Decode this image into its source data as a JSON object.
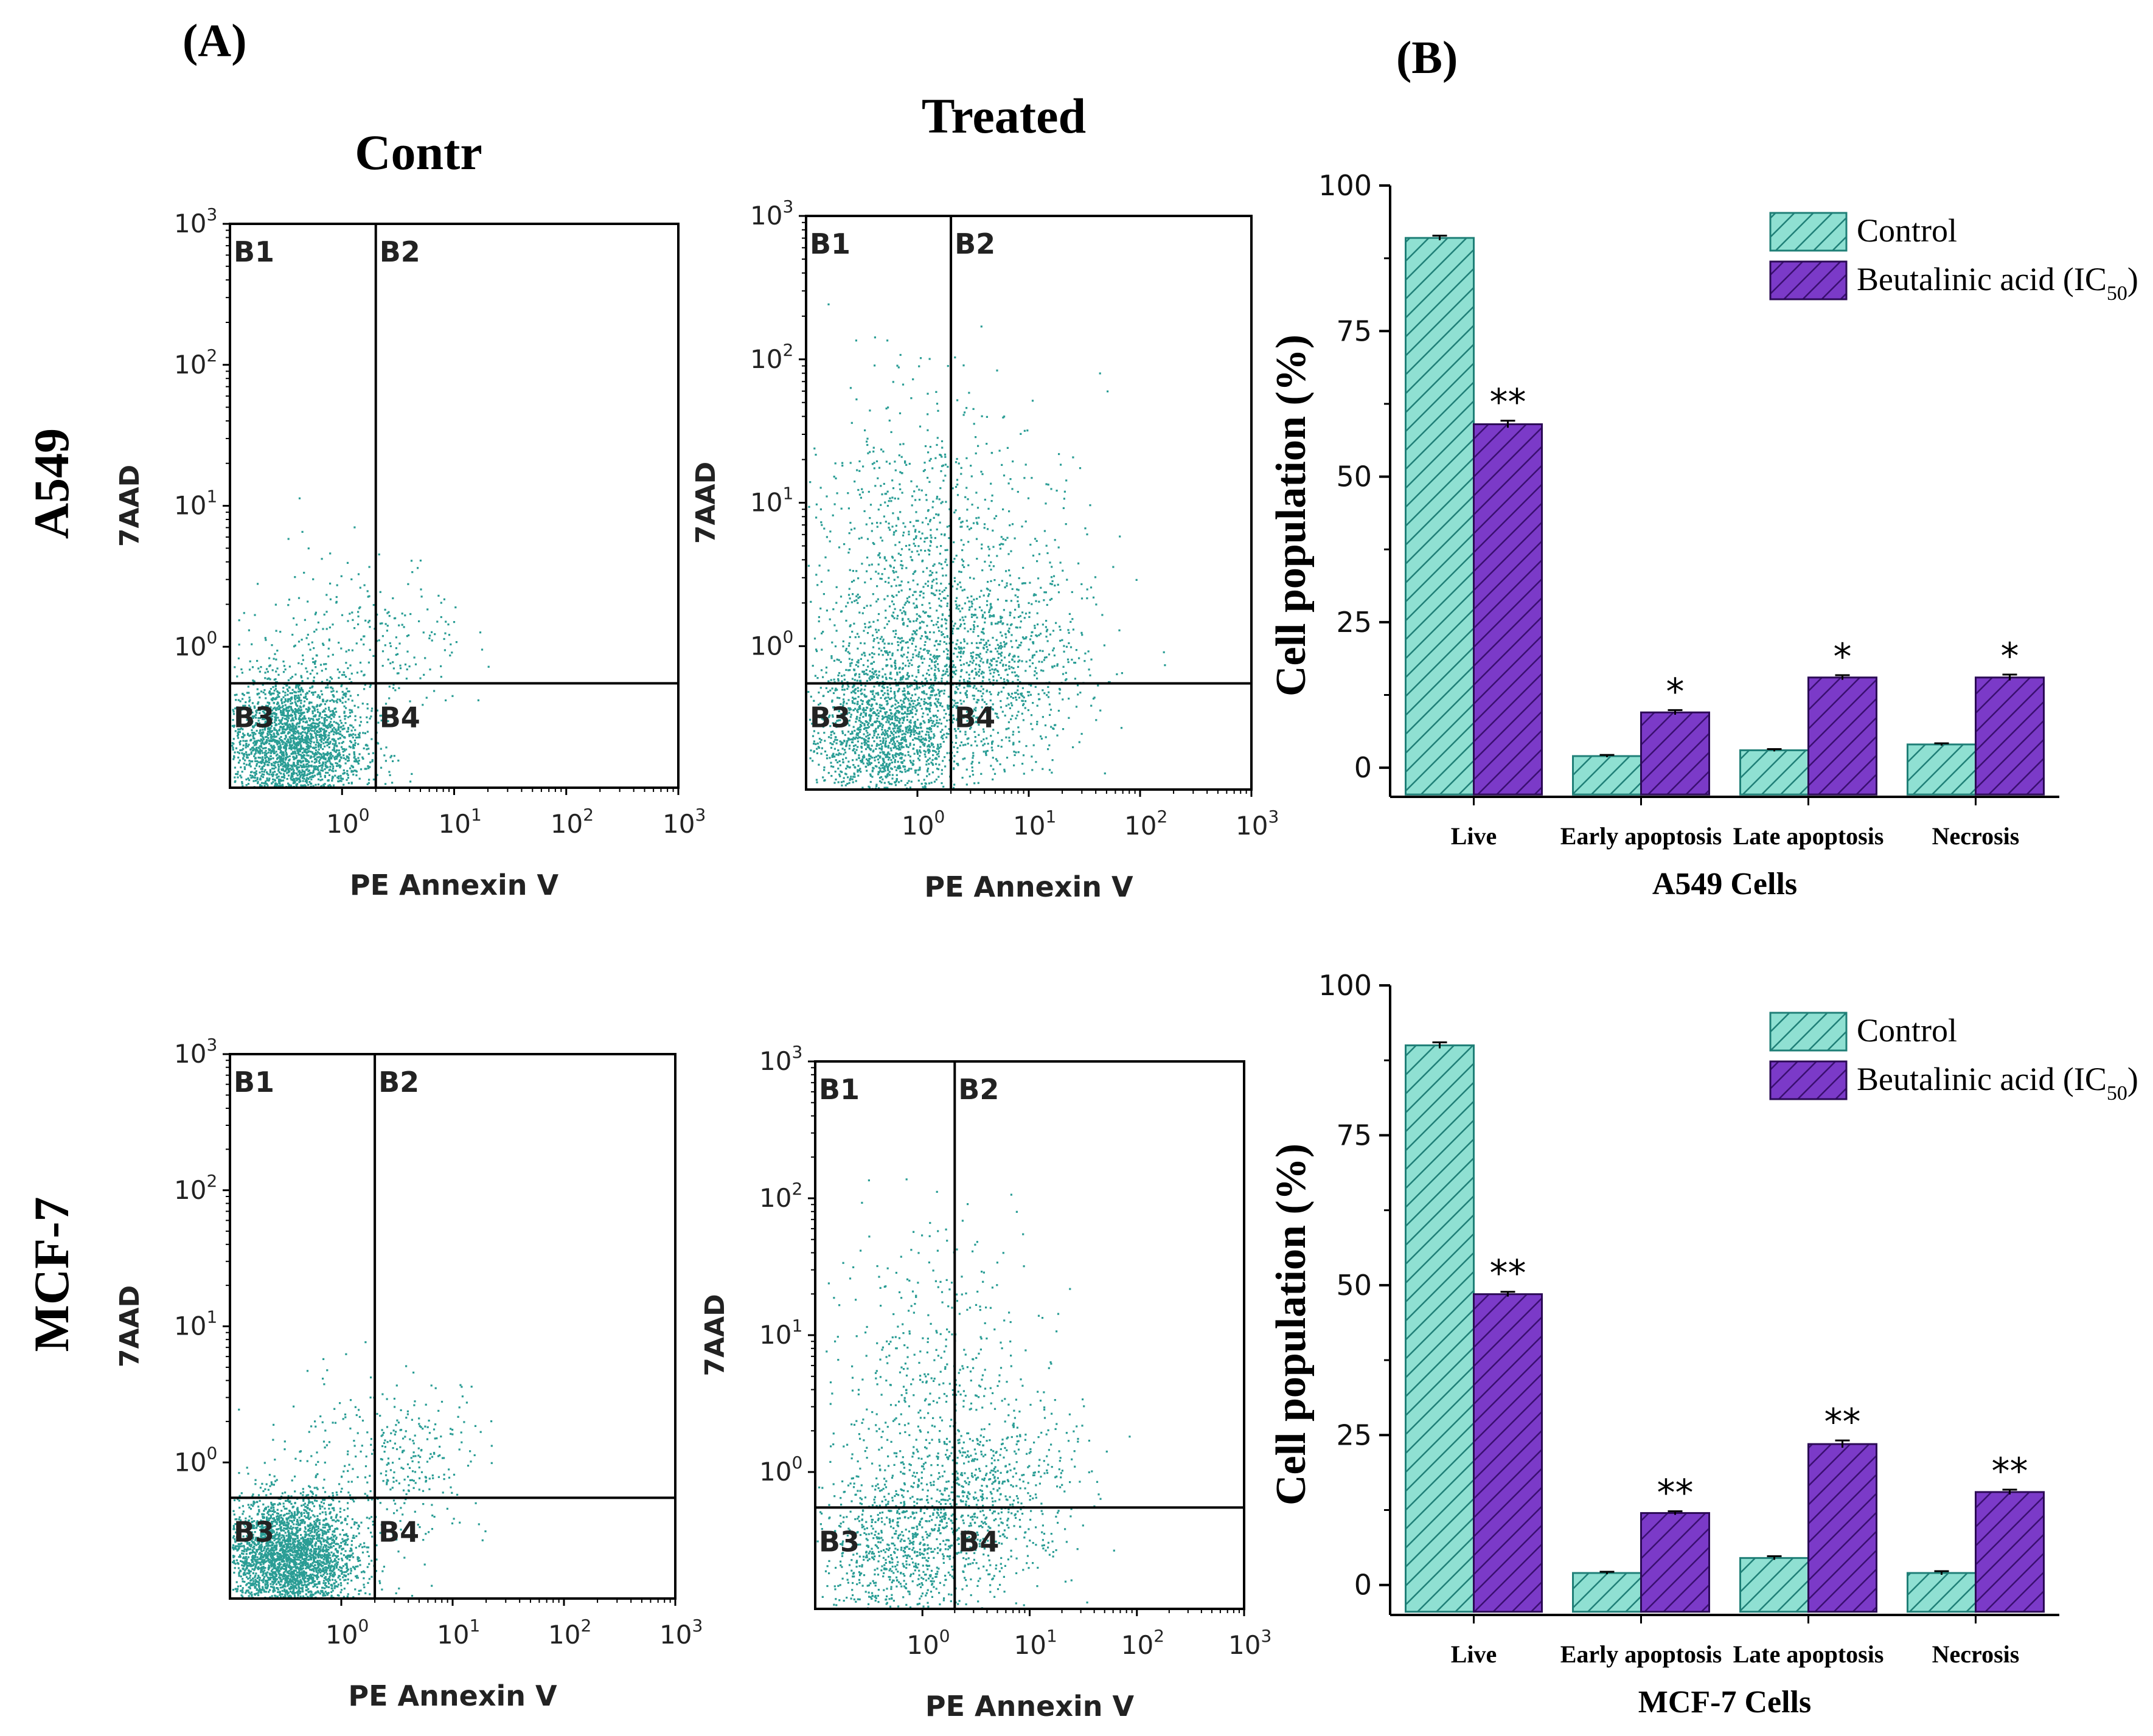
{
  "panel_a_label": "(A)",
  "panel_b_label": "(B)",
  "col_control": "Contr",
  "col_treated": "Treated",
  "row_a549": "A549",
  "row_mcf7": "MCF-7",
  "colors": {
    "teal": "#2a9d95",
    "teal_fill": "#8fe0d2",
    "purple": "#6a2bb0",
    "purple_fill": "#7b3ac8",
    "axis": "#000000"
  },
  "chart_data": [
    {
      "type": "scatter",
      "title": "A549 Control",
      "xlabel": "PE Annexin V",
      "ylabel": "7AAD",
      "xlim": [
        0.1,
        1000
      ],
      "ylim": [
        0.1,
        1000
      ],
      "scale": "log",
      "x_ticks": [
        "10^0",
        "10^1",
        "10^2",
        "10^3"
      ],
      "y_ticks": [
        "10^0",
        "10^1",
        "10^2",
        "10^3"
      ],
      "quadrant_gate": {
        "x": 2,
        "y": 0.55
      },
      "quadrants": [
        "B1",
        "B2",
        "B3",
        "B4"
      ],
      "clusters": [
        {
          "x": 0.35,
          "y": 0.2,
          "n": 2600,
          "spread_x": 0.32,
          "spread_y": 0.25
        },
        {
          "x": 2.5,
          "y": 1.1,
          "n": 170,
          "spread_x": 0.35,
          "spread_y": 0.3
        },
        {
          "x": 0.6,
          "y": 0.8,
          "n": 110,
          "spread_x": 0.4,
          "spread_y": 0.35
        }
      ]
    },
    {
      "type": "scatter",
      "title": "A549 Treated",
      "xlabel": "PE Annexin V",
      "ylabel": "7AAD",
      "xlim": [
        0.1,
        1000
      ],
      "ylim": [
        0.1,
        1000
      ],
      "scale": "log",
      "x_ticks": [
        "10^0",
        "10^1",
        "10^2",
        "10^3"
      ],
      "y_ticks": [
        "10^0",
        "10^1",
        "10^2",
        "10^3"
      ],
      "quadrant_gate": {
        "x": 2,
        "y": 0.55
      },
      "quadrants": [
        "B1",
        "B2",
        "B3",
        "B4"
      ],
      "clusters": [
        {
          "x": 0.5,
          "y": 0.25,
          "n": 1700,
          "spread_x": 0.35,
          "spread_y": 0.3
        },
        {
          "x": 4,
          "y": 0.7,
          "n": 900,
          "spread_x": 0.45,
          "spread_y": 0.35
        },
        {
          "x": 0.8,
          "y": 4,
          "n": 650,
          "spread_x": 0.45,
          "spread_y": 0.6
        },
        {
          "x": 3,
          "y": 3,
          "n": 300,
          "spread_x": 0.6,
          "spread_y": 0.6
        }
      ]
    },
    {
      "type": "scatter",
      "title": "MCF-7 Control",
      "xlabel": "PE Annexin V",
      "ylabel": "7AAD",
      "xlim": [
        0.1,
        1000
      ],
      "ylim": [
        0.1,
        1000
      ],
      "scale": "log",
      "x_ticks": [
        "10^0",
        "10^1",
        "10^2",
        "10^3"
      ],
      "y_ticks": [
        "10^0",
        "10^1",
        "10^2",
        "10^3"
      ],
      "quadrant_gate": {
        "x": 2,
        "y": 0.55
      },
      "quadrants": [
        "B1",
        "B2",
        "B3",
        "B4"
      ],
      "clusters": [
        {
          "x": 0.33,
          "y": 0.2,
          "n": 3000,
          "spread_x": 0.3,
          "spread_y": 0.22
        },
        {
          "x": 4,
          "y": 1.1,
          "n": 260,
          "spread_x": 0.35,
          "spread_y": 0.3
        },
        {
          "x": 0.8,
          "y": 0.7,
          "n": 120,
          "spread_x": 0.4,
          "spread_y": 0.35
        }
      ]
    },
    {
      "type": "scatter",
      "title": "MCF-7 Treated",
      "xlabel": "PE Annexin V",
      "ylabel": "7AAD",
      "xlim": [
        0.1,
        1000
      ],
      "ylim": [
        0.1,
        1000
      ],
      "scale": "log",
      "x_ticks": [
        "10^0",
        "10^1",
        "10^2",
        "10^3"
      ],
      "y_ticks": [
        "10^0",
        "10^1",
        "10^2",
        "10^3"
      ],
      "quadrant_gate": {
        "x": 2,
        "y": 0.55
      },
      "quadrants": [
        "B1",
        "B2",
        "B3",
        "B4"
      ],
      "clusters": [
        {
          "x": 0.6,
          "y": 0.25,
          "n": 850,
          "spread_x": 0.4,
          "spread_y": 0.3
        },
        {
          "x": 4,
          "y": 0.7,
          "n": 550,
          "spread_x": 0.4,
          "spread_y": 0.35
        },
        {
          "x": 0.9,
          "y": 4,
          "n": 380,
          "spread_x": 0.45,
          "spread_y": 0.6
        },
        {
          "x": 3,
          "y": 3,
          "n": 140,
          "spread_x": 0.55,
          "spread_y": 0.6
        }
      ]
    },
    {
      "type": "bar",
      "categories": [
        "Live",
        "Early apoptosis",
        "Late apoptosis",
        "Necrosis"
      ],
      "series": [
        {
          "name": "Control",
          "values": [
            91,
            2,
            3,
            4
          ],
          "errors": [
            0.4,
            0.2,
            0.2,
            0.2
          ]
        },
        {
          "name": "Beutalinic acid (IC50)",
          "values": [
            59,
            9.5,
            15.5,
            15.5
          ],
          "errors": [
            0.6,
            0.4,
            0.4,
            0.5
          ]
        }
      ],
      "annotations": [
        "**",
        "*",
        "*",
        "*"
      ],
      "xlabel": "A549 Cells",
      "ylabel": "Cell population (%)",
      "ylim": [
        -5,
        100
      ],
      "yticks": [
        0,
        25,
        50,
        75,
        100
      ],
      "legend_position": "top-right"
    },
    {
      "type": "bar",
      "categories": [
        "Live",
        "Early apoptosis",
        "Late apoptosis",
        "Necrosis"
      ],
      "series": [
        {
          "name": "Control",
          "values": [
            90,
            2,
            4.5,
            2
          ],
          "errors": [
            0.5,
            0.2,
            0.3,
            0.3
          ]
        },
        {
          "name": "Beutalinic acid (IC50)",
          "values": [
            48.5,
            12,
            23.5,
            15.5
          ],
          "errors": [
            0.4,
            0.3,
            0.6,
            0.4
          ]
        }
      ],
      "annotations": [
        "**",
        "**",
        "**",
        "**"
      ],
      "xlabel": "MCF-7 Cells",
      "ylabel": "Cell population (%)",
      "ylim": [
        -5,
        100
      ],
      "yticks": [
        0,
        25,
        50,
        75,
        100
      ],
      "legend_position": "top-right"
    }
  ]
}
